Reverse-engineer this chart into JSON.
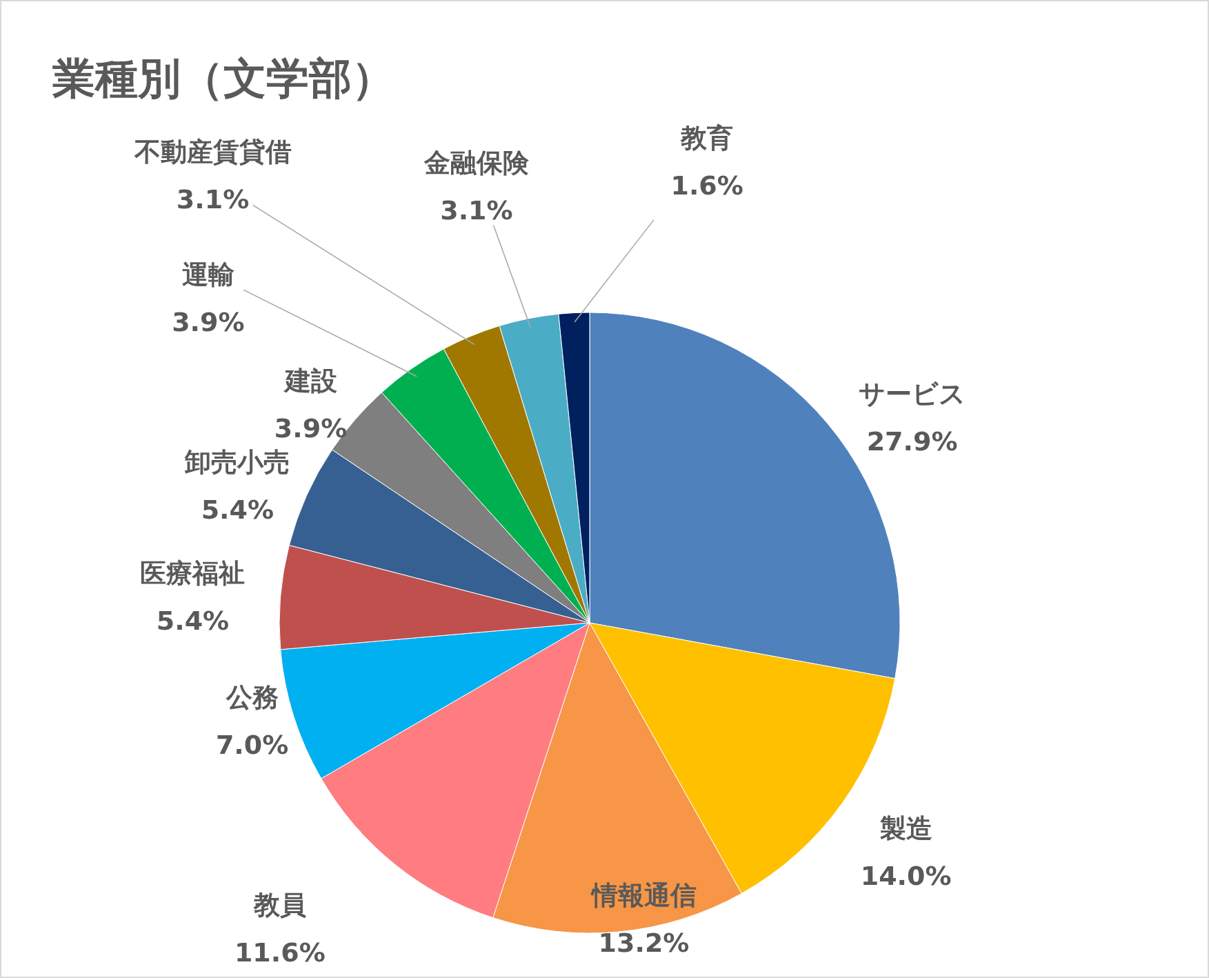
{
  "chart_data": {
    "type": "pie",
    "title": "業種別（文学部）",
    "categories": [
      "サービス",
      "製造",
      "情報通信",
      "教員",
      "公務",
      "医療福祉",
      "卸売小売",
      "建設",
      "運輸",
      "不動産賃貸借",
      "金融保険",
      "教育"
    ],
    "values": [
      27.9,
      14.0,
      13.2,
      11.6,
      7.0,
      5.4,
      5.4,
      3.9,
      3.9,
      3.1,
      3.1,
      1.6
    ],
    "colors": [
      "#4f81bd",
      "#ffc000",
      "#f79646",
      "#ff7c80",
      "#00b0f0",
      "#c0504d",
      "#366092",
      "#7f7f7f",
      "#00b050",
      "#a07800",
      "#4bacc6",
      "#002060"
    ],
    "value_labels": [
      "27.9%",
      "14.0%",
      "13.2%",
      "11.6%",
      "7.0%",
      "5.4%",
      "5.4%",
      "3.9%",
      "3.9%",
      "3.1%",
      "3.1%",
      "1.6%"
    ]
  }
}
